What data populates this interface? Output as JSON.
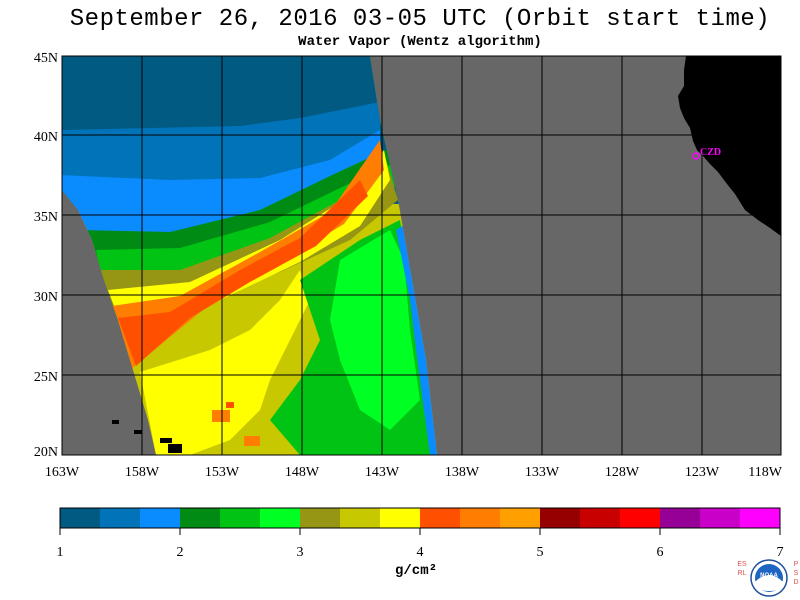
{
  "header": {
    "title": "September 26, 2016  03-05 UTC  (Orbit start time)",
    "subtitle": "Water Vapor (Wentz algorithm)"
  },
  "map": {
    "lat_labels": [
      "45N",
      "40N",
      "35N",
      "30N",
      "25N",
      "20N"
    ],
    "lon_labels": [
      "163W",
      "158W",
      "153W",
      "148W",
      "143W",
      "138W",
      "133W",
      "128W",
      "123W",
      "118W"
    ],
    "lat_range": [
      20,
      45
    ],
    "lon_range": [
      -163,
      -118
    ],
    "station_label": "CZD",
    "colors": {
      "no_data": "#676767",
      "land": "#000000",
      "grid": "#000000",
      "station": "#ff00ff"
    }
  },
  "colorbar": {
    "tick_labels": [
      "1",
      "2",
      "3",
      "4",
      "5",
      "6",
      "7"
    ],
    "unit_label": "g/cm²",
    "min": 1,
    "max": 7,
    "colors": [
      "#005a82",
      "#0073b9",
      "#0a8cff",
      "#008c14",
      "#00c314",
      "#00ff23",
      "#969614",
      "#c8c800",
      "#ffff00",
      "#ff5000",
      "#ff7d00",
      "#ffa000",
      "#960000",
      "#c80000",
      "#ff0000",
      "#960096",
      "#c800c8",
      "#ff00ff"
    ]
  },
  "logo": {
    "left_text": "ESRL",
    "right_text": "PSD",
    "emblem_text": "NOAA"
  }
}
